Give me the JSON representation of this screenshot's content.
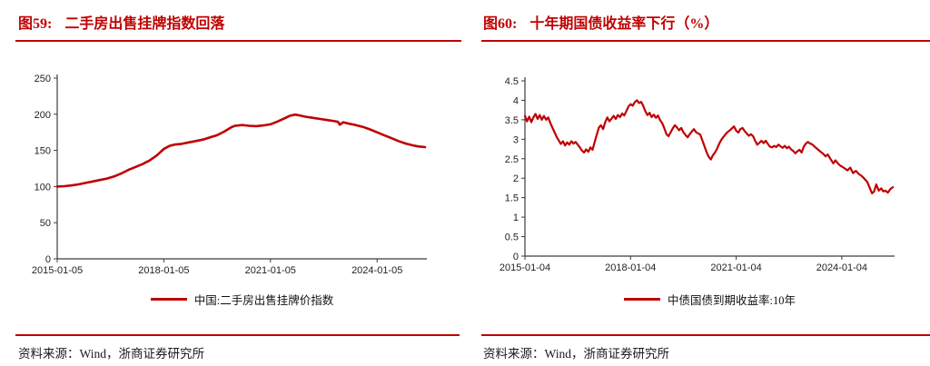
{
  "page": {
    "background": "#ffffff",
    "accent_red": "#c00000",
    "axis_color": "#3c3c3c"
  },
  "figures": [
    {
      "fig_label": "图59:",
      "title": "二手房出售挂牌指数回落",
      "legend": "中国:二手房出售挂牌价指数",
      "source": "资料来源：Wind，浙商证券研究所"
    },
    {
      "fig_label": "图60:",
      "title": "十年期国债收益率下行（%）",
      "legend": "中债国债到期收益率:10年",
      "source": "资料来源：Wind，浙商证券研究所"
    }
  ],
  "chart_data": [
    {
      "type": "line",
      "title": "二手房出售挂牌指数回落",
      "series_name": "中国:二手房出售挂牌价指数",
      "color": "#c00000",
      "line_width": 2.6,
      "grid": false,
      "legend_position": "bottom-center",
      "xlim": [
        2015.0,
        2025.4
      ],
      "ylim": [
        0,
        250
      ],
      "x_ticks": [
        {
          "x": 2015.0,
          "label": "2015-01-05"
        },
        {
          "x": 2018.0,
          "label": "2018-01-05"
        },
        {
          "x": 2021.0,
          "label": "2021-01-05"
        },
        {
          "x": 2024.0,
          "label": "2024-01-05"
        }
      ],
      "y_ticks": [
        "0",
        "50",
        "100",
        "150",
        "200",
        "250"
      ],
      "points": [
        [
          2015.0,
          100
        ],
        [
          2015.2,
          100.5
        ],
        [
          2015.4,
          101.5
        ],
        [
          2015.6,
          103
        ],
        [
          2015.8,
          105
        ],
        [
          2016.0,
          107
        ],
        [
          2016.2,
          109
        ],
        [
          2016.4,
          111
        ],
        [
          2016.6,
          114
        ],
        [
          2016.8,
          118
        ],
        [
          2017.0,
          123
        ],
        [
          2017.2,
          127
        ],
        [
          2017.4,
          131
        ],
        [
          2017.6,
          136
        ],
        [
          2017.8,
          143
        ],
        [
          2018.0,
          152
        ],
        [
          2018.15,
          156
        ],
        [
          2018.3,
          158
        ],
        [
          2018.5,
          159
        ],
        [
          2018.7,
          161
        ],
        [
          2018.9,
          163
        ],
        [
          2019.1,
          165
        ],
        [
          2019.3,
          168
        ],
        [
          2019.5,
          171
        ],
        [
          2019.7,
          176
        ],
        [
          2019.9,
          182
        ],
        [
          2020.0,
          184
        ],
        [
          2020.2,
          185
        ],
        [
          2020.4,
          184
        ],
        [
          2020.6,
          183.5
        ],
        [
          2020.8,
          184.5
        ],
        [
          2021.0,
          186
        ],
        [
          2021.2,
          190
        ],
        [
          2021.4,
          194.5
        ],
        [
          2021.55,
          198
        ],
        [
          2021.7,
          199.5
        ],
        [
          2021.85,
          198
        ],
        [
          2022.0,
          196.5
        ],
        [
          2022.2,
          195
        ],
        [
          2022.4,
          193.5
        ],
        [
          2022.6,
          192
        ],
        [
          2022.8,
          190.5
        ],
        [
          2022.9,
          189.5
        ],
        [
          2022.95,
          185.5
        ],
        [
          2023.05,
          189
        ],
        [
          2023.2,
          187
        ],
        [
          2023.4,
          185
        ],
        [
          2023.6,
          182.5
        ],
        [
          2023.8,
          179
        ],
        [
          2024.0,
          175
        ],
        [
          2024.2,
          171
        ],
        [
          2024.4,
          167
        ],
        [
          2024.6,
          163
        ],
        [
          2024.8,
          159.5
        ],
        [
          2025.0,
          157
        ],
        [
          2025.15,
          155.5
        ],
        [
          2025.35,
          154.5
        ]
      ]
    },
    {
      "type": "line",
      "title": "十年期国债收益率下行（%）",
      "series_name": "中债国债到期收益率:10年",
      "color": "#c00000",
      "line_width": 2.2,
      "grid": false,
      "legend_position": "bottom-center",
      "xlim": [
        2015.0,
        2025.5
      ],
      "ylim": [
        0,
        4.5
      ],
      "x_ticks": [
        {
          "x": 2015.0,
          "label": "2015-01-04"
        },
        {
          "x": 2018.0,
          "label": "2018-01-04"
        },
        {
          "x": 2021.0,
          "label": "2021-01-04"
        },
        {
          "x": 2024.0,
          "label": "2024-01-04"
        }
      ],
      "y_ticks": [
        "0",
        "0.5",
        "1",
        "1.5",
        "2",
        "2.5",
        "3",
        "3.5",
        "4",
        "4.5"
      ],
      "points": [
        [
          2015.0,
          3.6
        ],
        [
          2015.06,
          3.46
        ],
        [
          2015.12,
          3.58
        ],
        [
          2015.18,
          3.44
        ],
        [
          2015.24,
          3.56
        ],
        [
          2015.3,
          3.65
        ],
        [
          2015.36,
          3.52
        ],
        [
          2015.42,
          3.62
        ],
        [
          2015.48,
          3.5
        ],
        [
          2015.54,
          3.6
        ],
        [
          2015.6,
          3.5
        ],
        [
          2015.66,
          3.56
        ],
        [
          2015.72,
          3.42
        ],
        [
          2015.78,
          3.3
        ],
        [
          2015.84,
          3.18
        ],
        [
          2015.9,
          3.06
        ],
        [
          2015.96,
          2.97
        ],
        [
          2016.02,
          2.88
        ],
        [
          2016.08,
          2.95
        ],
        [
          2016.14,
          2.84
        ],
        [
          2016.2,
          2.92
        ],
        [
          2016.26,
          2.86
        ],
        [
          2016.32,
          2.95
        ],
        [
          2016.38,
          2.89
        ],
        [
          2016.44,
          2.93
        ],
        [
          2016.5,
          2.86
        ],
        [
          2016.56,
          2.79
        ],
        [
          2016.62,
          2.71
        ],
        [
          2016.68,
          2.66
        ],
        [
          2016.74,
          2.74
        ],
        [
          2016.8,
          2.68
        ],
        [
          2016.86,
          2.79
        ],
        [
          2016.92,
          2.73
        ],
        [
          2016.98,
          2.92
        ],
        [
          2017.04,
          3.12
        ],
        [
          2017.1,
          3.3
        ],
        [
          2017.16,
          3.36
        ],
        [
          2017.22,
          3.26
        ],
        [
          2017.28,
          3.44
        ],
        [
          2017.34,
          3.56
        ],
        [
          2017.4,
          3.46
        ],
        [
          2017.46,
          3.53
        ],
        [
          2017.52,
          3.6
        ],
        [
          2017.58,
          3.52
        ],
        [
          2017.64,
          3.62
        ],
        [
          2017.7,
          3.57
        ],
        [
          2017.76,
          3.66
        ],
        [
          2017.82,
          3.61
        ],
        [
          2017.88,
          3.72
        ],
        [
          2017.94,
          3.84
        ],
        [
          2018.0,
          3.9
        ],
        [
          2018.06,
          3.86
        ],
        [
          2018.12,
          3.95
        ],
        [
          2018.18,
          4.0
        ],
        [
          2018.24,
          3.93
        ],
        [
          2018.3,
          3.96
        ],
        [
          2018.36,
          3.86
        ],
        [
          2018.42,
          3.72
        ],
        [
          2018.48,
          3.62
        ],
        [
          2018.54,
          3.68
        ],
        [
          2018.6,
          3.57
        ],
        [
          2018.66,
          3.63
        ],
        [
          2018.72,
          3.55
        ],
        [
          2018.78,
          3.61
        ],
        [
          2018.84,
          3.49
        ],
        [
          2018.9,
          3.41
        ],
        [
          2018.96,
          3.28
        ],
        [
          2019.02,
          3.13
        ],
        [
          2019.08,
          3.08
        ],
        [
          2019.14,
          3.18
        ],
        [
          2019.2,
          3.28
        ],
        [
          2019.26,
          3.36
        ],
        [
          2019.32,
          3.3
        ],
        [
          2019.38,
          3.23
        ],
        [
          2019.44,
          3.29
        ],
        [
          2019.5,
          3.18
        ],
        [
          2019.56,
          3.11
        ],
        [
          2019.62,
          3.05
        ],
        [
          2019.68,
          3.13
        ],
        [
          2019.74,
          3.2
        ],
        [
          2019.8,
          3.26
        ],
        [
          2019.86,
          3.18
        ],
        [
          2019.92,
          3.15
        ],
        [
          2019.98,
          3.12
        ],
        [
          2020.04,
          2.97
        ],
        [
          2020.1,
          2.82
        ],
        [
          2020.16,
          2.67
        ],
        [
          2020.22,
          2.55
        ],
        [
          2020.28,
          2.48
        ],
        [
          2020.34,
          2.59
        ],
        [
          2020.4,
          2.66
        ],
        [
          2020.46,
          2.76
        ],
        [
          2020.52,
          2.89
        ],
        [
          2020.58,
          2.99
        ],
        [
          2020.64,
          3.06
        ],
        [
          2020.7,
          3.13
        ],
        [
          2020.76,
          3.19
        ],
        [
          2020.82,
          3.23
        ],
        [
          2020.88,
          3.28
        ],
        [
          2020.94,
          3.33
        ],
        [
          2021.0,
          3.22
        ],
        [
          2021.06,
          3.17
        ],
        [
          2021.12,
          3.26
        ],
        [
          2021.18,
          3.29
        ],
        [
          2021.24,
          3.21
        ],
        [
          2021.3,
          3.15
        ],
        [
          2021.36,
          3.09
        ],
        [
          2021.42,
          3.13
        ],
        [
          2021.48,
          3.08
        ],
        [
          2021.54,
          2.96
        ],
        [
          2021.6,
          2.86
        ],
        [
          2021.66,
          2.91
        ],
        [
          2021.72,
          2.96
        ],
        [
          2021.78,
          2.9
        ],
        [
          2021.84,
          2.96
        ],
        [
          2021.9,
          2.88
        ],
        [
          2021.96,
          2.81
        ],
        [
          2022.02,
          2.79
        ],
        [
          2022.08,
          2.83
        ],
        [
          2022.14,
          2.8
        ],
        [
          2022.2,
          2.86
        ],
        [
          2022.26,
          2.82
        ],
        [
          2022.32,
          2.78
        ],
        [
          2022.38,
          2.83
        ],
        [
          2022.44,
          2.77
        ],
        [
          2022.5,
          2.81
        ],
        [
          2022.56,
          2.74
        ],
        [
          2022.62,
          2.7
        ],
        [
          2022.68,
          2.64
        ],
        [
          2022.74,
          2.69
        ],
        [
          2022.8,
          2.73
        ],
        [
          2022.86,
          2.66
        ],
        [
          2022.92,
          2.81
        ],
        [
          2022.98,
          2.89
        ],
        [
          2023.04,
          2.93
        ],
        [
          2023.1,
          2.89
        ],
        [
          2023.16,
          2.87
        ],
        [
          2023.24,
          2.8
        ],
        [
          2023.32,
          2.74
        ],
        [
          2023.4,
          2.68
        ],
        [
          2023.48,
          2.62
        ],
        [
          2023.54,
          2.56
        ],
        [
          2023.6,
          2.61
        ],
        [
          2023.68,
          2.49
        ],
        [
          2023.76,
          2.38
        ],
        [
          2023.82,
          2.46
        ],
        [
          2023.9,
          2.37
        ],
        [
          2023.96,
          2.32
        ],
        [
          2024.04,
          2.28
        ],
        [
          2024.1,
          2.24
        ],
        [
          2024.16,
          2.2
        ],
        [
          2024.24,
          2.27
        ],
        [
          2024.32,
          2.13
        ],
        [
          2024.4,
          2.19
        ],
        [
          2024.48,
          2.11
        ],
        [
          2024.56,
          2.06
        ],
        [
          2024.64,
          1.99
        ],
        [
          2024.72,
          1.91
        ],
        [
          2024.8,
          1.74
        ],
        [
          2024.86,
          1.61
        ],
        [
          2024.92,
          1.66
        ],
        [
          2024.98,
          1.84
        ],
        [
          2025.05,
          1.68
        ],
        [
          2025.12,
          1.74
        ],
        [
          2025.18,
          1.66
        ],
        [
          2025.24,
          1.68
        ],
        [
          2025.31,
          1.63
        ],
        [
          2025.38,
          1.72
        ],
        [
          2025.45,
          1.77
        ]
      ]
    }
  ]
}
